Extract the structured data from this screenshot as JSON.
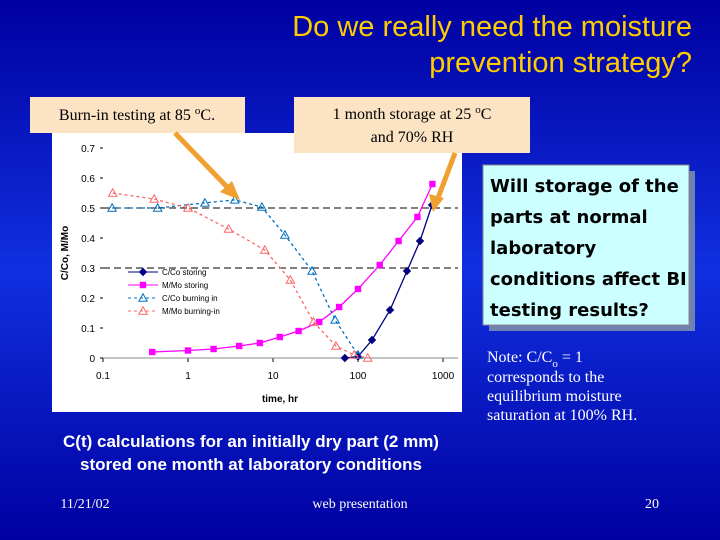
{
  "slide_title": [
    "Do we really need the moisture",
    "prevention strategy?"
  ],
  "callout_left": {
    "pre": "Burn-in testing at 85 ",
    "sup": "o",
    "post": "C."
  },
  "callout_right": {
    "line1_pre": "1 month storage at 25 ",
    "line1_sup": "o",
    "line1_post": "C",
    "line2": "and 70% RH"
  },
  "question": [
    "Will storage of the",
    "parts at normal",
    "laboratory",
    "conditions affect BI",
    "testing results?"
  ],
  "note": {
    "pre": "Note: C/C",
    "sub": "o",
    "post": " = 1",
    "lines": [
      "corresponds to the",
      "equilibrium moisture",
      "saturation at 100% RH."
    ]
  },
  "caption": [
    "C(t) calculations for an initially dry  part (2 mm)",
    "stored one month at laboratory conditions"
  ],
  "footer": {
    "date": "11/21/02",
    "center": "web presentation",
    "page": "20"
  },
  "chart_data": {
    "type": "line",
    "xscale": "log",
    "xlabel": "time, hr",
    "ylabel": "C/Co, M/Mo",
    "xlim": [
      0.1,
      1500
    ],
    "xticks": [
      0.1,
      1,
      10,
      100,
      1000
    ],
    "ylim": [
      0,
      0.7
    ],
    "yticks": [
      0,
      0.1,
      0.2,
      0.3,
      0.4,
      0.5,
      0.6,
      0.7
    ],
    "hlines": [
      0.3,
      0.5
    ],
    "series": [
      {
        "name": "C/Co storing",
        "color": "#000080",
        "marker": "diamond",
        "dash": false,
        "x": [
          70,
          100,
          146,
          238,
          377,
          536,
          742
        ],
        "values": [
          0,
          0.005,
          0.06,
          0.16,
          0.29,
          0.39,
          0.51
        ]
      },
      {
        "name": "M/Mo storing",
        "color": "#ff00ff",
        "marker": "square",
        "dash": false,
        "x": [
          0.38,
          1,
          2,
          4,
          7,
          12,
          20,
          35,
          60,
          100,
          180,
          300,
          500,
          750
        ],
        "values": [
          0.02,
          0.025,
          0.03,
          0.04,
          0.05,
          0.07,
          0.09,
          0.12,
          0.17,
          0.23,
          0.31,
          0.39,
          0.47,
          0.58
        ]
      },
      {
        "name": "C/Co burning in",
        "color": "#0070c0",
        "marker": "triangle",
        "dash": true,
        "x": [
          0.128,
          0.44,
          1.58,
          3.55,
          7.4,
          13.8,
          28.8,
          53.7,
          100
        ],
        "values": [
          0.5,
          0.5,
          0.517,
          0.527,
          0.503,
          0.41,
          0.29,
          0.127,
          0.01
        ]
      },
      {
        "name": "M/Mo burning-in",
        "color": "#ff6666",
        "marker": "triangle",
        "dash": true,
        "x": [
          0.13,
          0.4,
          1,
          3,
          8,
          16,
          30,
          55,
          90,
          130
        ],
        "values": [
          0.55,
          0.53,
          0.5,
          0.43,
          0.36,
          0.26,
          0.12,
          0.04,
          0.01,
          0
        ]
      }
    ]
  }
}
